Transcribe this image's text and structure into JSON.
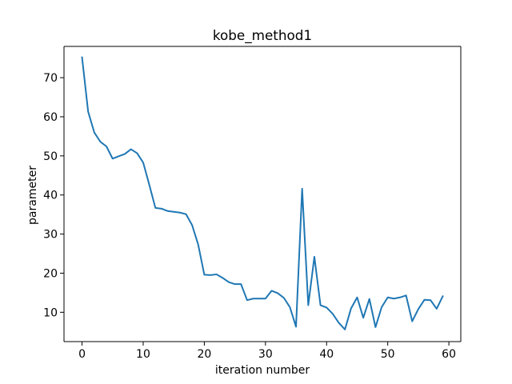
{
  "chart_data": {
    "type": "line",
    "title": "kobe_method1",
    "xlabel": "iteration number",
    "ylabel": "parameter",
    "xlim": [
      -2.95,
      61.95
    ],
    "ylim": [
      2.5,
      78
    ],
    "xticks": [
      0,
      10,
      20,
      30,
      40,
      50,
      60
    ],
    "yticks": [
      10,
      20,
      30,
      40,
      50,
      60,
      70
    ],
    "grid": false,
    "series": [
      {
        "color": "#1f77b4",
        "x": [
          0,
          1,
          2,
          3,
          4,
          5,
          6,
          7,
          8,
          9,
          10,
          11,
          12,
          13,
          14,
          15,
          16,
          17,
          18,
          19,
          20,
          21,
          22,
          23,
          24,
          25,
          26,
          27,
          28,
          29,
          30,
          31,
          32,
          33,
          34,
          35,
          36,
          37,
          38,
          39,
          40,
          41,
          42,
          43,
          44,
          45,
          46,
          47,
          48,
          49,
          50,
          51,
          52,
          53,
          54,
          55,
          56,
          57,
          58,
          59
        ],
        "y": [
          75.2,
          61.3,
          56.0,
          53.6,
          52.4,
          49.3,
          49.9,
          50.5,
          51.7,
          50.7,
          48.3,
          42.6,
          36.7,
          36.5,
          35.9,
          35.7,
          35.5,
          35.1,
          32.3,
          27.3,
          19.6,
          19.5,
          19.7,
          18.8,
          17.7,
          17.2,
          17.2,
          13.1,
          13.5,
          13.5,
          13.5,
          15.5,
          14.9,
          13.7,
          11.3,
          6.3,
          41.6,
          11.8,
          24.2,
          11.8,
          11.2,
          9.6,
          7.3,
          5.6,
          11.0,
          13.8,
          8.6,
          13.4,
          6.2,
          11.3,
          13.8,
          13.5,
          13.8,
          14.3,
          7.7,
          10.8,
          13.2,
          13.1,
          10.9,
          14.1
        ]
      }
    ]
  }
}
